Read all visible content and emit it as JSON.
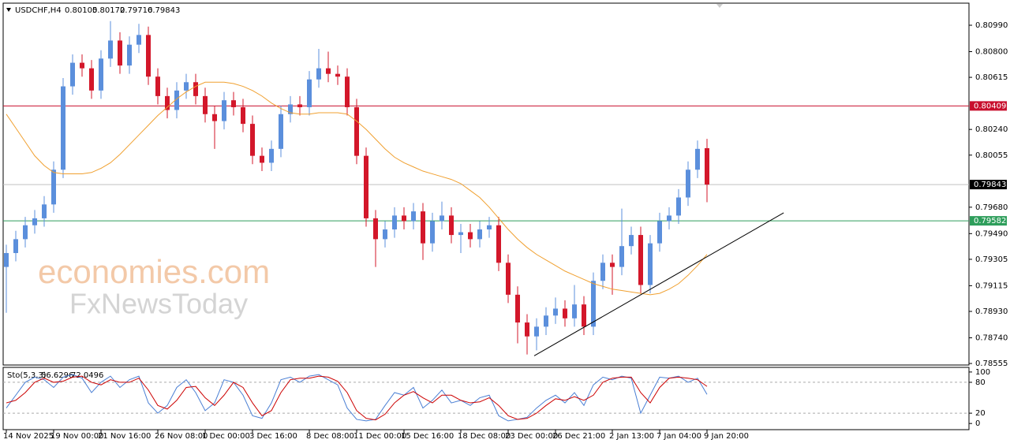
{
  "chart_data": {
    "type": "candlestick",
    "symbol": "USDCHF,H4",
    "header_values": [
      0.80105,
      0.80172,
      0.79716,
      0.79843
    ],
    "watermark": [
      "economies.com",
      "FxNewsToday"
    ],
    "categories": [
      "14 Nov 2025",
      null,
      null,
      null,
      null,
      "19 Nov 00:00",
      null,
      null,
      null,
      null,
      "21 Nov 16:00",
      null,
      null,
      null,
      null,
      null,
      "26 Nov 08:00",
      null,
      null,
      null,
      null,
      "1 Dec 00:00",
      null,
      null,
      null,
      null,
      "3 Dec 16:00",
      null,
      null,
      null,
      null,
      null,
      "8 Dec 08:00",
      null,
      null,
      null,
      null,
      "11 Dec 00:00",
      null,
      null,
      null,
      null,
      "15 Dec 16:00",
      null,
      null,
      null,
      null,
      null,
      "18 Dec 08:00",
      null,
      null,
      null,
      null,
      "23 Dec 00:00",
      null,
      null,
      null,
      null,
      "26 Dec 21:00",
      null,
      null,
      null,
      null,
      null,
      "2 Jan 13:00",
      null,
      null,
      null,
      null,
      "7 Jan 04:00",
      null,
      null,
      null,
      null,
      "9 Jan 20:00"
    ],
    "open": [
      0.7925,
      0.7935,
      0.7945,
      0.7955,
      0.796,
      0.797,
      0.7995,
      0.8055,
      0.8072,
      0.8068,
      0.8052,
      0.8075,
      0.8088,
      0.807,
      0.8085,
      0.8092,
      0.8062,
      0.8048,
      0.8038,
      0.8052,
      0.8058,
      0.8048,
      0.8035,
      0.803,
      0.8045,
      0.804,
      0.8028,
      0.8005,
      0.8,
      0.801,
      0.8035,
      0.8042,
      0.804,
      0.806,
      0.8068,
      0.8064,
      0.8062,
      0.804,
      0.8005,
      0.796,
      0.7945,
      0.7952,
      0.7962,
      0.7958,
      0.7965,
      0.7942,
      0.7958,
      0.7962,
      0.7948,
      0.795,
      0.7945,
      0.7952,
      0.7955,
      0.7928,
      0.7905,
      0.7885,
      0.7875,
      0.7882,
      0.789,
      0.7895,
      0.7888,
      0.7898,
      0.7882,
      0.7915,
      0.7928,
      0.7925,
      0.794,
      0.7948,
      0.7912,
      0.7942,
      0.7958,
      0.7962,
      0.7975,
      0.7995,
      0.80105
    ],
    "high": [
      0.7941,
      0.7951,
      0.7961,
      0.7966,
      0.7976,
      0.8001,
      0.8061,
      0.8078,
      0.8078,
      0.8074,
      0.8081,
      0.8102,
      0.8094,
      0.8091,
      0.81,
      0.8098,
      0.8068,
      0.8054,
      0.8058,
      0.8064,
      0.8064,
      0.8054,
      0.8041,
      0.8051,
      0.8051,
      0.8046,
      0.8034,
      0.8011,
      0.8016,
      0.8041,
      0.8048,
      0.8048,
      0.8066,
      0.8082,
      0.808,
      0.807,
      0.8068,
      0.8046,
      0.8011,
      0.7966,
      0.7958,
      0.7968,
      0.7968,
      0.7971,
      0.7971,
      0.7964,
      0.7972,
      0.7968,
      0.7956,
      0.7956,
      0.7958,
      0.7961,
      0.7961,
      0.7934,
      0.7911,
      0.7891,
      0.7888,
      0.7896,
      0.7903,
      0.7901,
      0.7912,
      0.7904,
      0.7921,
      0.7934,
      0.7934,
      0.7967,
      0.7954,
      0.7954,
      0.7948,
      0.7964,
      0.7968,
      0.7981,
      0.8001,
      0.8016,
      0.80172
    ],
    "low": [
      0.7892,
      0.7929,
      0.7939,
      0.7949,
      0.7954,
      0.7964,
      0.7989,
      0.8049,
      0.8062,
      0.8046,
      0.8046,
      0.8069,
      0.8064,
      0.8064,
      0.8079,
      0.8056,
      0.8042,
      0.8032,
      0.8032,
      0.8046,
      0.8042,
      0.8029,
      0.801,
      0.8024,
      0.8034,
      0.8022,
      0.7999,
      0.7994,
      0.7994,
      0.8004,
      0.8029,
      0.8034,
      0.8034,
      0.8054,
      0.8058,
      0.8056,
      0.8034,
      0.7999,
      0.7954,
      0.7925,
      0.7939,
      0.7946,
      0.7952,
      0.7952,
      0.793,
      0.7936,
      0.7952,
      0.7942,
      0.7935,
      0.7939,
      0.7939,
      0.7946,
      0.7922,
      0.7899,
      0.787,
      0.7862,
      0.7865,
      0.7876,
      0.7884,
      0.7882,
      0.7882,
      0.7876,
      0.7876,
      0.7909,
      0.7905,
      0.7919,
      0.7934,
      0.7906,
      0.7906,
      0.7936,
      0.7952,
      0.7956,
      0.7969,
      0.7989,
      0.79716
    ],
    "close": [
      0.7935,
      0.7945,
      0.7955,
      0.796,
      0.797,
      0.7995,
      0.8055,
      0.8072,
      0.8068,
      0.8052,
      0.8075,
      0.8088,
      0.807,
      0.8085,
      0.8092,
      0.8062,
      0.8048,
      0.8038,
      0.8052,
      0.8058,
      0.8048,
      0.8035,
      0.803,
      0.8045,
      0.804,
      0.8028,
      0.8005,
      0.8,
      0.801,
      0.8035,
      0.8042,
      0.804,
      0.806,
      0.8068,
      0.8064,
      0.8062,
      0.804,
      0.8005,
      0.796,
      0.7945,
      0.7952,
      0.7962,
      0.7958,
      0.7965,
      0.7942,
      0.7958,
      0.7962,
      0.7948,
      0.795,
      0.7945,
      0.7952,
      0.7955,
      0.7928,
      0.7905,
      0.7885,
      0.7875,
      0.7882,
      0.789,
      0.7895,
      0.7888,
      0.7898,
      0.7882,
      0.7915,
      0.7928,
      0.7925,
      0.794,
      0.7948,
      0.7912,
      0.7942,
      0.7958,
      0.7962,
      0.7975,
      0.7995,
      0.801,
      0.79843
    ],
    "up_color": "#5b8fdc",
    "down_color": "#d3172a",
    "moving_average": {
      "color": "#f0a030",
      "values": [
        0.8035,
        0.8025,
        0.8015,
        0.8005,
        0.7998,
        0.7993,
        0.7992,
        0.7992,
        0.7992,
        0.7993,
        0.7996,
        0.8,
        0.8006,
        0.8013,
        0.802,
        0.8027,
        0.8034,
        0.804,
        0.8046,
        0.8051,
        0.8055,
        0.8058,
        0.8058,
        0.8058,
        0.8057,
        0.8055,
        0.8052,
        0.8048,
        0.8043,
        0.8039,
        0.8036,
        0.8035,
        0.8035,
        0.8036,
        0.8036,
        0.8036,
        0.8035,
        0.803,
        0.8024,
        0.8017,
        0.801,
        0.8004,
        0.8,
        0.7997,
        0.7994,
        0.7992,
        0.799,
        0.7988,
        0.7985,
        0.798,
        0.7975,
        0.7968,
        0.796,
        0.7952,
        0.7945,
        0.7939,
        0.7934,
        0.793,
        0.7926,
        0.7922,
        0.7919,
        0.7916,
        0.7913,
        0.7911,
        0.7909,
        0.7908,
        0.7907,
        0.7906,
        0.7905,
        0.7906,
        0.7909,
        0.7913,
        0.7919,
        0.7926,
        0.7934
      ]
    },
    "trendline": {
      "color": "#000000",
      "x": [
        55.75,
        82.1
      ],
      "y": [
        0.7861,
        0.7964
      ]
    },
    "levels": [
      {
        "value": 0.80409,
        "color": "#c8102e",
        "label_color": "#c8102e"
      },
      {
        "value": 0.79843,
        "color": "#c0c0c0",
        "label_color": "#000000"
      },
      {
        "value": 0.79582,
        "color": "#2e9e5b",
        "label_color": "#2e9e5b"
      }
    ],
    "ylim": [
      0.78544,
      0.81149
    ],
    "yticks": [
      {
        "value": 0.8099,
        "label": "0.80990"
      },
      {
        "value": 0.808,
        "label": "0.80800"
      },
      {
        "value": 0.80615,
        "label": "0.80615"
      },
      {
        "value": 0.8024,
        "label": "0.80240"
      },
      {
        "value": 0.80055,
        "label": "0.80055"
      },
      {
        "value": 0.7968,
        "label": "0.79680"
      },
      {
        "value": 0.7949,
        "label": "0.79490"
      },
      {
        "value": 0.79305,
        "label": "0.79305"
      },
      {
        "value": 0.79115,
        "label": "0.79115"
      },
      {
        "value": 0.7893,
        "label": "0.78930"
      },
      {
        "value": 0.7874,
        "label": "0.78740"
      },
      {
        "value": 0.78555,
        "label": "0.78555"
      }
    ],
    "indicator": {
      "name": "Sto(5,3,3)",
      "ylim": [
        -12,
        109
      ],
      "yticks": [
        100,
        80,
        20,
        0
      ],
      "levels": [
        80,
        20
      ],
      "series": [
        {
          "color": "#4a7fd4",
          "values": [
            30,
            55,
            80,
            90,
            85,
            70,
            90,
            95,
            88,
            60,
            80,
            92,
            70,
            85,
            92,
            40,
            20,
            35,
            70,
            85,
            60,
            25,
            40,
            85,
            80,
            55,
            15,
            10,
            40,
            85,
            90,
            80,
            92,
            95,
            85,
            75,
            30,
            8,
            5,
            8,
            35,
            60,
            55,
            70,
            30,
            45,
            65,
            40,
            45,
            35,
            50,
            55,
            15,
            5,
            8,
            12,
            30,
            45,
            55,
            40,
            60,
            35,
            75,
            90,
            85,
            92,
            88,
            20,
            55,
            90,
            88,
            92,
            80,
            88,
            56.6296
          ]
        },
        {
          "color": "#cc0000",
          "values": [
            40,
            45,
            60,
            80,
            88,
            80,
            82,
            90,
            92,
            80,
            75,
            85,
            80,
            80,
            88,
            65,
            35,
            28,
            45,
            70,
            72,
            50,
            35,
            55,
            80,
            70,
            40,
            15,
            25,
            60,
            85,
            88,
            88,
            92,
            90,
            82,
            60,
            25,
            10,
            7,
            18,
            40,
            55,
            62,
            50,
            40,
            55,
            55,
            45,
            40,
            42,
            50,
            35,
            15,
            8,
            10,
            20,
            35,
            48,
            45,
            52,
            45,
            55,
            80,
            88,
            90,
            90,
            60,
            40,
            70,
            88,
            90,
            88,
            85,
            72.0496
          ]
        }
      ]
    }
  }
}
